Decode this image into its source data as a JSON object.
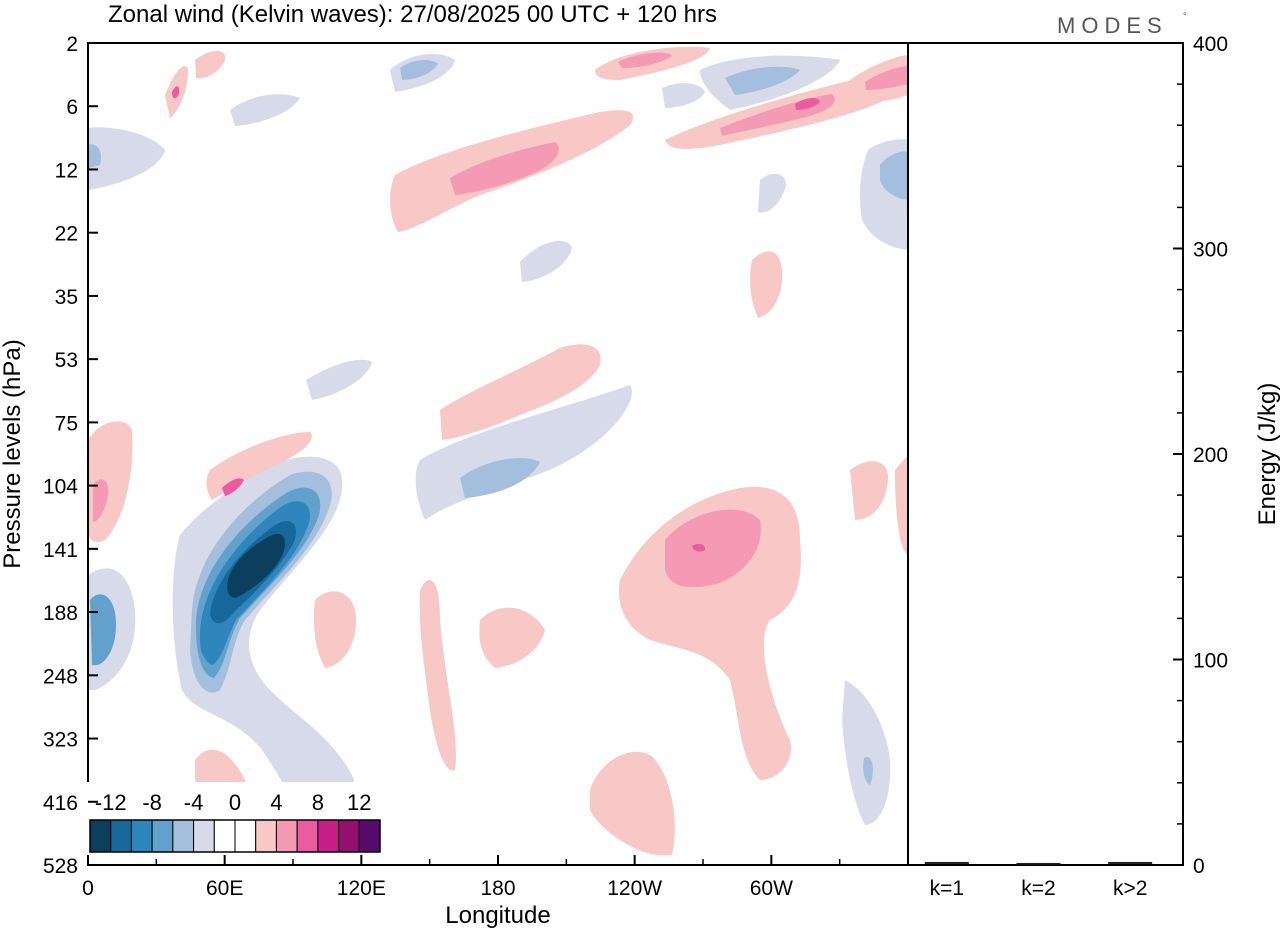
{
  "chart_data": [
    {
      "type": "heatmap",
      "title": "Zonal wind (Kelvin waves):  27/08/2025  00 UTC  + 120 hrs",
      "xlabel": "Longitude",
      "ylabel": "Pressure levels (hPa)",
      "x_ticks": [
        "0",
        "60E",
        "120E",
        "180",
        "120W",
        "60W"
      ],
      "x_tick_degrees": [
        0,
        60,
        120,
        180,
        240,
        300
      ],
      "xlim": [
        0,
        360
      ],
      "y_ticks": [
        "2",
        "6",
        "12",
        "22",
        "35",
        "53",
        "75",
        "104",
        "141",
        "188",
        "248",
        "323",
        "416",
        "528"
      ],
      "y_axis": "log-pressure, top 2 hPa, bottom 528 hPa",
      "colorbar": {
        "labels": [
          "-12",
          "-8",
          "-4",
          "0",
          "4",
          "8",
          "12"
        ],
        "levels": [
          -14,
          -12,
          -10,
          -8,
          -6,
          -4,
          -2,
          0,
          2,
          4,
          6,
          8,
          10,
          12,
          14
        ],
        "colors": [
          "#0c3e5e",
          "#16679a",
          "#2f86bd",
          "#62a1cc",
          "#a4bedd",
          "#d7dae9",
          "#ffffff",
          "#ffffff",
          "#f8c8c6",
          "#f59ab5",
          "#eb5b9f",
          "#c81e87",
          "#93106f",
          "#560a6a"
        ]
      },
      "regions": [
        {
          "sign": "negative",
          "location": "55E-90E, 140-250 hPa",
          "peak": -14
        },
        {
          "sign": "negative",
          "location": "0-10E, 170-230 hPa",
          "peak": -8
        },
        {
          "sign": "negative",
          "location": "150E-170W, 90-130 hPa",
          "peak": -6
        },
        {
          "sign": "negative",
          "location": "60W-20W, 2-8 hPa",
          "peak": -6
        },
        {
          "sign": "negative",
          "location": "10W-0, 10-20 hPa",
          "peak": -6
        },
        {
          "sign": "positive",
          "location": "175E-160W, 8-20 hPa",
          "peak": 8
        },
        {
          "sign": "positive",
          "location": "110W-90W, 120-200 hPa",
          "peak": 10
        },
        {
          "sign": "positive",
          "location": "0-10E, 80-150 hPa",
          "peak": 6
        },
        {
          "sign": "positive",
          "location": "60E-70E, 100-110 hPa",
          "peak": 6
        },
        {
          "sign": "positive",
          "location": "50W-30W, 4-8 hPa",
          "peak": 10
        },
        {
          "sign": "positive",
          "location": "140W-120W, 2-4 hPa",
          "peak": 8
        }
      ]
    },
    {
      "type": "bar",
      "ylabel": "Energy (J/kg)",
      "ylim": [
        0,
        400
      ],
      "y_ticks": [
        "0",
        "100",
        "200",
        "300",
        "400"
      ],
      "categories": [
        "k=1",
        "k=2",
        "k>2"
      ],
      "values": [
        1,
        0.5,
        1
      ]
    }
  ],
  "branding": {
    "logo_text": "MODES",
    "logo_mark": "°"
  }
}
